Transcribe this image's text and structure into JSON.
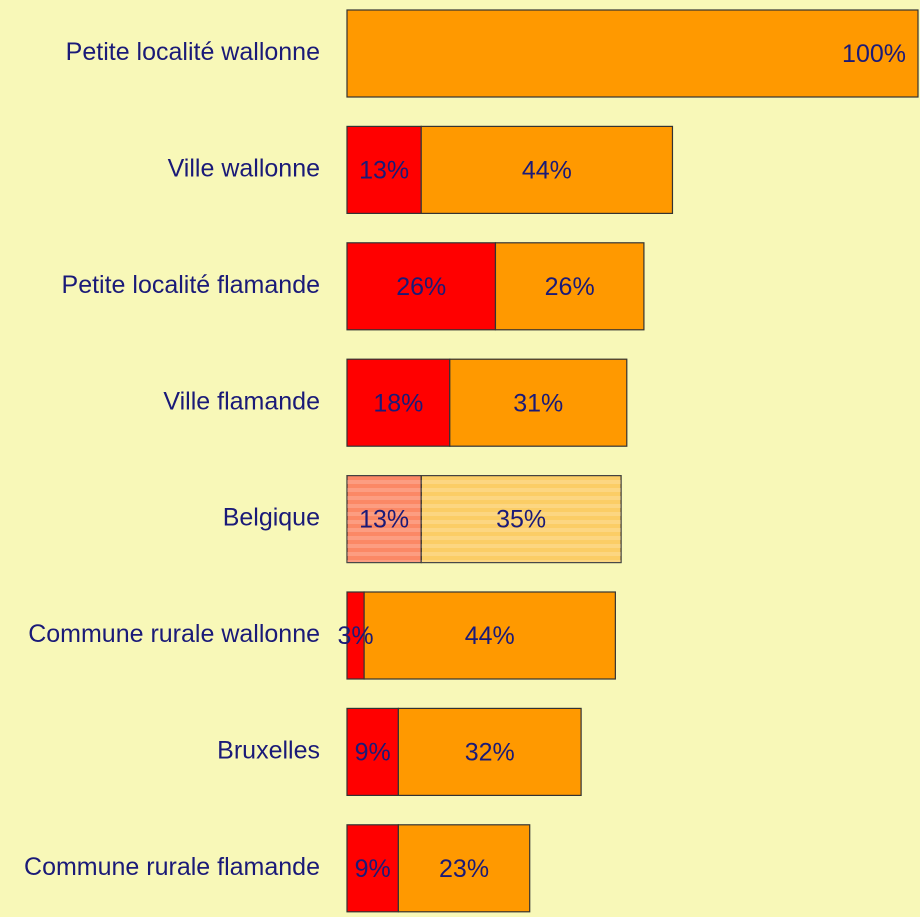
{
  "chart_data": {
    "type": "stacked_barh",
    "categories": [
      "Petite localité wallonne",
      "Ville wallonne",
      "Petite localité flamande",
      "Ville flamande",
      "Belgique",
      "Commune rurale wallonne",
      "Bruxelles",
      "Commune rurale flamande"
    ],
    "series": [
      {
        "color": "#ff0000",
        "values": [
          0,
          13,
          26,
          18,
          13,
          3,
          9,
          9
        ],
        "value_labels": [
          null,
          "13%",
          "26%",
          "18%",
          "13%",
          "3%",
          "9%",
          "9%"
        ]
      },
      {
        "color": "#ff9900",
        "values": [
          100,
          44,
          26,
          31,
          35,
          44,
          32,
          23
        ],
        "value_labels": [
          "100%",
          "44%",
          "26%",
          "31%",
          "35%",
          "44%",
          "32%",
          "23%"
        ]
      }
    ],
    "xlim": [
      0,
      100
    ],
    "highlight_index": 4
  }
}
